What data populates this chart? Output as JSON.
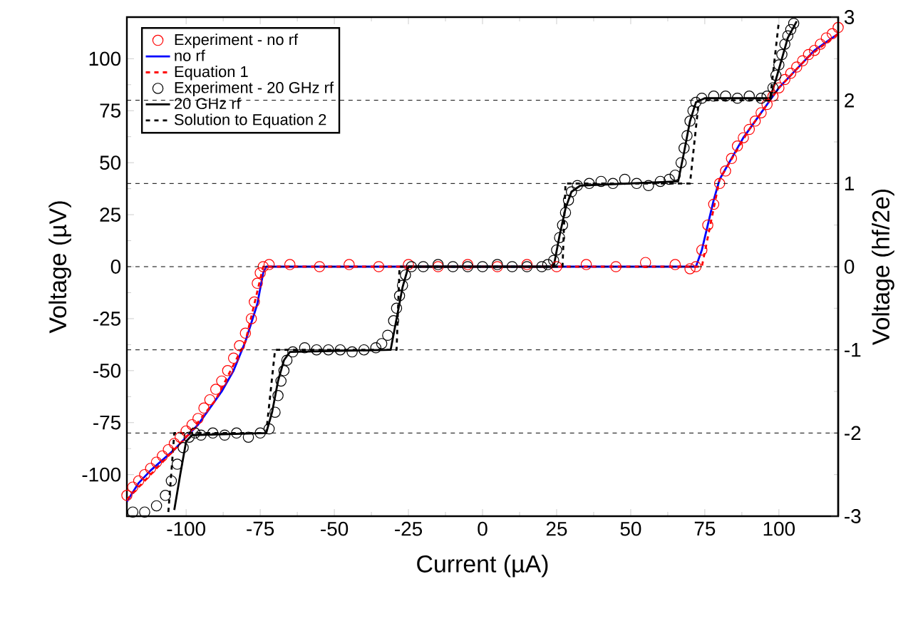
{
  "chart_data": {
    "type": "line",
    "xlabel": "Current (µA)",
    "ylabel": "Voltage (µV)",
    "y2label": "Voltage (hf/2e)",
    "xlim": [
      -120,
      120
    ],
    "xticks": [
      -100,
      -75,
      -50,
      -25,
      0,
      25,
      50,
      75,
      100
    ],
    "ylim": [
      -120,
      120
    ],
    "yticks": [
      -100,
      -75,
      -50,
      -25,
      0,
      25,
      50,
      75,
      100
    ],
    "y2lim": [
      -3,
      3
    ],
    "y2ticks": [
      -3,
      -2,
      -1,
      0,
      1,
      2,
      3
    ],
    "legend": "top left",
    "ref_lines": [
      {
        "axis": "y2",
        "value": -2,
        "color": "#000000",
        "line_style": "dashed"
      },
      {
        "axis": "y2",
        "value": -1,
        "color": "#000000",
        "line_style": "dashed"
      },
      {
        "axis": "y2",
        "value": 0,
        "color": "#000000",
        "line_style": "dashed"
      },
      {
        "axis": "y2",
        "value": 1,
        "color": "#000000",
        "line_style": "dashed"
      },
      {
        "axis": "y2",
        "value": 2,
        "color": "#000000",
        "line_style": "dashed"
      }
    ],
    "series": [
      {
        "name": "Experiment - no rf",
        "type": "scatter",
        "marker": "circle",
        "color": "#ff0000",
        "x": [
          -120,
          -118,
          -116,
          -114,
          -112,
          -110,
          -108,
          -106,
          -104,
          -102,
          -100,
          -98,
          -96,
          -94,
          -92,
          -90,
          -88,
          -86,
          -84,
          -82,
          -80,
          -78,
          -77,
          -76,
          -75,
          -74,
          -72,
          -65,
          -55,
          -45,
          -35,
          -25,
          -15,
          -5,
          5,
          15,
          25,
          35,
          45,
          55,
          65,
          70,
          72,
          74,
          76,
          78,
          80,
          82,
          84,
          86,
          88,
          90,
          92,
          94,
          96,
          98,
          100,
          102,
          104,
          106,
          108,
          110,
          112,
          114,
          116,
          118,
          120
        ],
        "values": [
          -110,
          -106,
          -103,
          -100,
          -97,
          -94,
          -91,
          -88,
          -85,
          -82,
          -79,
          -76,
          -73,
          -68,
          -64,
          -59,
          -55,
          -50,
          -44,
          -38,
          -32,
          -25,
          -17,
          -8,
          -3,
          0,
          1,
          1,
          0,
          1,
          0,
          1,
          0,
          1,
          0,
          1,
          0,
          1,
          0,
          2,
          1,
          -1,
          0,
          8,
          20,
          30,
          40,
          46,
          52,
          58,
          62,
          66,
          70,
          74,
          78,
          82,
          86,
          90,
          93,
          96,
          99,
          102,
          104,
          107,
          110,
          112,
          115
        ]
      },
      {
        "name": "no rf",
        "marker": "none",
        "line_style": "solid",
        "color": "#0000ff",
        "x": [
          -120,
          -116,
          -112,
          -108,
          -104,
          -100,
          -96,
          -92,
          -88,
          -84,
          -80,
          -76,
          -74,
          -73,
          72,
          74,
          76,
          78,
          80,
          84,
          88,
          92,
          96,
          100,
          104,
          108,
          112,
          116,
          120
        ],
        "values": [
          -113,
          -104,
          -98,
          -93,
          -88,
          -82,
          -76,
          -68,
          -60,
          -50,
          -36,
          -18,
          -3,
          0,
          0,
          8,
          20,
          32,
          42,
          52,
          62,
          70,
          78,
          86,
          92,
          98,
          104,
          108,
          112
        ]
      },
      {
        "name": "Equation 1",
        "marker": "none",
        "line_style": "dashed",
        "color": "#ff0000",
        "x": [
          -120,
          -100,
          -90,
          -80,
          -74,
          74,
          80,
          90,
          100,
          110,
          120
        ],
        "values": [
          -112,
          -82,
          -64,
          -36,
          0,
          0,
          42,
          66,
          86,
          101,
          112
        ]
      },
      {
        "name": "Experiment - 20 GHz rf",
        "type": "scatter",
        "marker": "circle",
        "color": "#000000",
        "x": [
          -118,
          -114,
          -110,
          -107,
          -105,
          -103,
          -101,
          -99,
          -97,
          -95,
          -91,
          -87,
          -83,
          -79,
          -75,
          -72,
          -70,
          -69,
          -68,
          -67,
          -66,
          -64,
          -60,
          -56,
          -52,
          -48,
          -44,
          -40,
          -36,
          -34,
          -32,
          -30,
          -29,
          -28,
          -27,
          -26,
          -24,
          -20,
          -15,
          -10,
          -5,
          0,
          5,
          10,
          15,
          20,
          22,
          24,
          25,
          26,
          27,
          28,
          29,
          30,
          32,
          36,
          40,
          44,
          48,
          52,
          56,
          60,
          63,
          65,
          67,
          68,
          69,
          70,
          71,
          72,
          74,
          78,
          82,
          86,
          90,
          94,
          96,
          98,
          99,
          100,
          101,
          102,
          103,
          104,
          105
        ],
        "values": [
          -118,
          -118,
          -115,
          -110,
          -103,
          -95,
          -87,
          -82,
          -80,
          -81,
          -80,
          -81,
          -80,
          -82,
          -80,
          -78,
          -70,
          -62,
          -55,
          -50,
          -45,
          -41,
          -39,
          -40,
          -40,
          -40,
          -41,
          -40,
          -39,
          -37,
          -33,
          -26,
          -20,
          -14,
          -9,
          -4,
          0,
          0,
          1,
          0,
          0,
          0,
          1,
          0,
          0,
          0,
          1,
          3,
          8,
          14,
          20,
          26,
          32,
          36,
          39,
          40,
          41,
          40,
          42,
          40,
          39,
          41,
          42,
          44,
          50,
          57,
          63,
          70,
          75,
          79,
          81,
          82,
          82,
          81,
          82,
          81,
          82,
          86,
          92,
          97,
          102,
          107,
          111,
          114,
          117
        ]
      },
      {
        "name": "20 GHz rf",
        "marker": "none",
        "line_style": "solid",
        "color": "#000000",
        "x": [
          -104,
          -102,
          -100,
          -98,
          -73,
          -71,
          -69,
          -67,
          -65,
          -31,
          -29,
          -27,
          -25,
          24,
          26,
          28,
          30,
          33,
          66,
          68,
          70,
          72,
          75,
          97,
          99,
          101,
          103,
          106
        ],
        "values": [
          -117,
          -100,
          -84,
          -81,
          -80,
          -70,
          -55,
          -45,
          -41,
          -40,
          -25,
          -10,
          0,
          0,
          15,
          28,
          36,
          39,
          41,
          55,
          70,
          79,
          81,
          81,
          90,
          100,
          110,
          118
        ]
      },
      {
        "name": "Solution to Equation 2",
        "marker": "none",
        "line_style": "dashed",
        "color": "#000000",
        "x": [
          -106,
          -104,
          -73,
          -70,
          -29,
          -28,
          27,
          28,
          70,
          73,
          97,
          100
        ],
        "values": [
          -118,
          -80,
          -80,
          -40,
          -40,
          0,
          0,
          40,
          40,
          80,
          80,
          118
        ]
      }
    ]
  }
}
